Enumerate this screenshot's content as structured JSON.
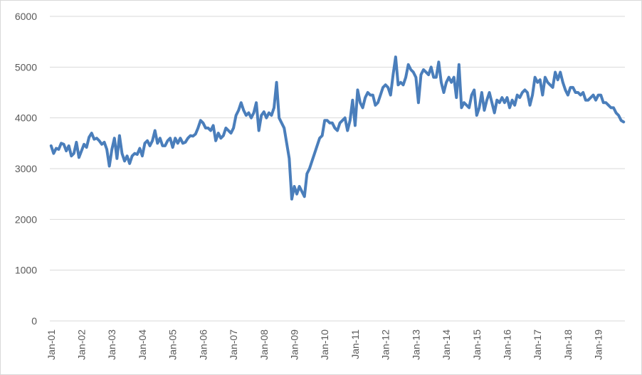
{
  "chart_data": {
    "type": "line",
    "title": "",
    "xlabel": "",
    "ylabel": "",
    "ylim": [
      0,
      6000
    ],
    "y_ticks": [
      "0",
      "1000",
      "2000",
      "3000",
      "4000",
      "5000",
      "6000"
    ],
    "x_tick_labels": [
      "Jan-01",
      "Jan-02",
      "Jan-03",
      "Jan-04",
      "Jan-05",
      "Jan-06",
      "Jan-07",
      "Jan-08",
      "Jan-09",
      "Jan-10",
      "Jan-11",
      "Jan-12",
      "Jan-13",
      "Jan-14",
      "Jan-15",
      "Jan-16",
      "Jan-17",
      "Jan-18",
      "Jan-19"
    ],
    "grid": true,
    "legend": "none",
    "line_color": "#4A7EBB",
    "x_start": "Jan-01",
    "series": [
      {
        "values": [
          3450,
          3300,
          3400,
          3380,
          3500,
          3480,
          3350,
          3450,
          3250,
          3300,
          3520,
          3220,
          3350,
          3480,
          3420,
          3620,
          3700,
          3580,
          3600,
          3550,
          3480,
          3520,
          3380,
          3050,
          3380,
          3600,
          3200,
          3650,
          3300,
          3150,
          3250,
          3100,
          3250,
          3300,
          3280,
          3400,
          3250,
          3500,
          3550,
          3450,
          3550,
          3750,
          3500,
          3600,
          3450,
          3450,
          3550,
          3600,
          3420,
          3600,
          3500,
          3600,
          3500,
          3520,
          3600,
          3650,
          3640,
          3680,
          3800,
          3950,
          3900,
          3800,
          3800,
          3750,
          3850,
          3550,
          3700,
          3600,
          3650,
          3800,
          3750,
          3700,
          3800,
          4050,
          4150,
          4300,
          4150,
          4050,
          4100,
          4000,
          4100,
          4300,
          3750,
          4050,
          4120,
          4000,
          4100,
          4050,
          4200,
          4700,
          4000,
          3900,
          3800,
          3500,
          3200,
          2400,
          2650,
          2500,
          2650,
          2550,
          2450,
          2900,
          3000,
          3150,
          3300,
          3450,
          3600,
          3650,
          3950,
          3950,
          3900,
          3900,
          3800,
          3750,
          3900,
          3950,
          4000,
          3750,
          3950,
          4350,
          3850,
          4550,
          4300,
          4200,
          4400,
          4500,
          4450,
          4450,
          4250,
          4300,
          4450,
          4600,
          4650,
          4600,
          4450,
          4850,
          5200,
          4650,
          4700,
          4650,
          4800,
          5050,
          4950,
          4900,
          4800,
          4300,
          4850,
          4950,
          4900,
          4850,
          5000,
          4800,
          4800,
          5100,
          4700,
          4500,
          4700,
          4800,
          4700,
          4800,
          4400,
          5050,
          4200,
          4300,
          4250,
          4200,
          4450,
          4550,
          4050,
          4200,
          4500,
          4150,
          4350,
          4500,
          4300,
          4100,
          4350,
          4300,
          4400,
          4300,
          4400,
          4200,
          4350,
          4250,
          4450,
          4400,
          4500,
          4550,
          4500,
          4250,
          4450,
          4800,
          4700,
          4750,
          4450,
          4800,
          4700,
          4650,
          4600,
          4900,
          4750,
          4900,
          4700,
          4550,
          4450,
          4600,
          4600,
          4500,
          4500,
          4450,
          4500,
          4350,
          4350,
          4400,
          4450,
          4350,
          4450,
          4450,
          4300,
          4300,
          4250,
          4200,
          4200,
          4100,
          4050,
          3950,
          3920
        ]
      }
    ]
  }
}
